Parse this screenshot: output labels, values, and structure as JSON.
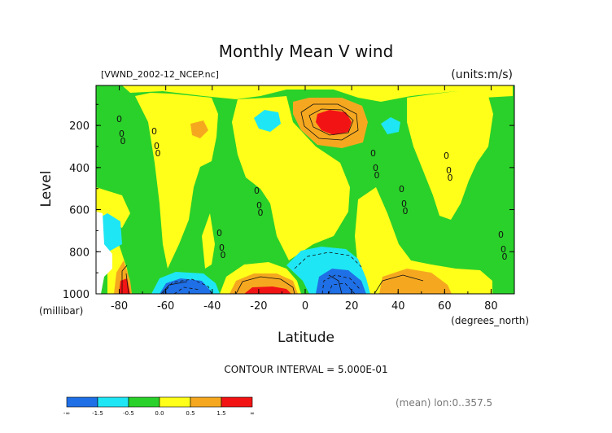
{
  "chart_data": {
    "type": "heatmap",
    "title": "Monthly Mean V wind",
    "file_label": "[VWND_2002-12_NCEP.nc]",
    "units_label": "(units:m/s)",
    "ylabel": "Level",
    "ylabel_units": "(millibar)",
    "xlabel": "Latitude",
    "xlabel_units": "(degrees_north)",
    "x_ticks": [
      "-80",
      "-60",
      "-40",
      "-20",
      "0",
      "20",
      "40",
      "60",
      "80"
    ],
    "x_tick_values": [
      -80,
      -60,
      -40,
      -20,
      0,
      20,
      40,
      60,
      80
    ],
    "y_ticks": [
      "200",
      "400",
      "600",
      "800",
      "1000"
    ],
    "y_tick_values": [
      200,
      400,
      600,
      800,
      1000
    ],
    "xlim": [
      -90,
      90
    ],
    "ylim": [
      1000,
      10
    ],
    "contour_interval_label": "CONTOUR INTERVAL = 5.000E-01",
    "averaging_note": "(mean) lon:0..357.5",
    "zero_contour_label": "0.00",
    "colorbar": {
      "labels": [
        "-∞",
        "-1.5",
        "-0.5",
        "0.0",
        "0.5",
        "1.5",
        "∞"
      ],
      "colors": [
        "#1f6fe6",
        "#1fe6f5",
        "#2ad12a",
        "#ffff19",
        "#f5a81f",
        "#f21414"
      ]
    },
    "legend_colors": {
      "strong_negative": "#1f6fe6",
      "negative": "#1fe6f5",
      "near_zero": "#2ad12a",
      "positive": "#ffff19",
      "moderate_positive": "#f5a81f",
      "strong_positive": "#f21414"
    }
  }
}
